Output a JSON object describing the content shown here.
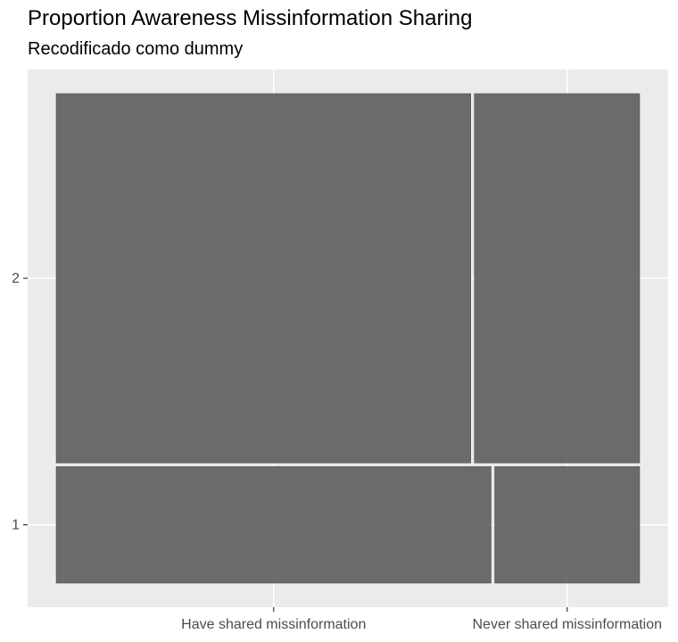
{
  "title": "Proportion Awareness Missinformation Sharing",
  "subtitle": "Recodificado como dummy",
  "colors": {
    "panel_background": "#ebebeb",
    "grid": "#ffffff",
    "tile_fill": "#595959",
    "tick_text": "#4d4d4d",
    "axis_tick": "#333333"
  },
  "chart_data": {
    "type": "mosaic",
    "xlabel": "",
    "ylabel": "",
    "x_categories": [
      "Have shared missinformation",
      "Never shared missinformation"
    ],
    "y_categories": [
      "1",
      "2"
    ],
    "rows": [
      {
        "y": "1",
        "row_share": 0.24,
        "tiles": [
          {
            "x": "Have shared missinformation",
            "share": 0.75
          },
          {
            "x": "Never shared missinformation",
            "share": 0.25
          }
        ]
      },
      {
        "y": "2",
        "row_share": 0.76,
        "tiles": [
          {
            "x": "Have shared missinformation",
            "share": 0.715
          },
          {
            "x": "Never shared missinformation",
            "share": 0.285
          }
        ]
      }
    ],
    "grid": true,
    "legend": "none"
  }
}
